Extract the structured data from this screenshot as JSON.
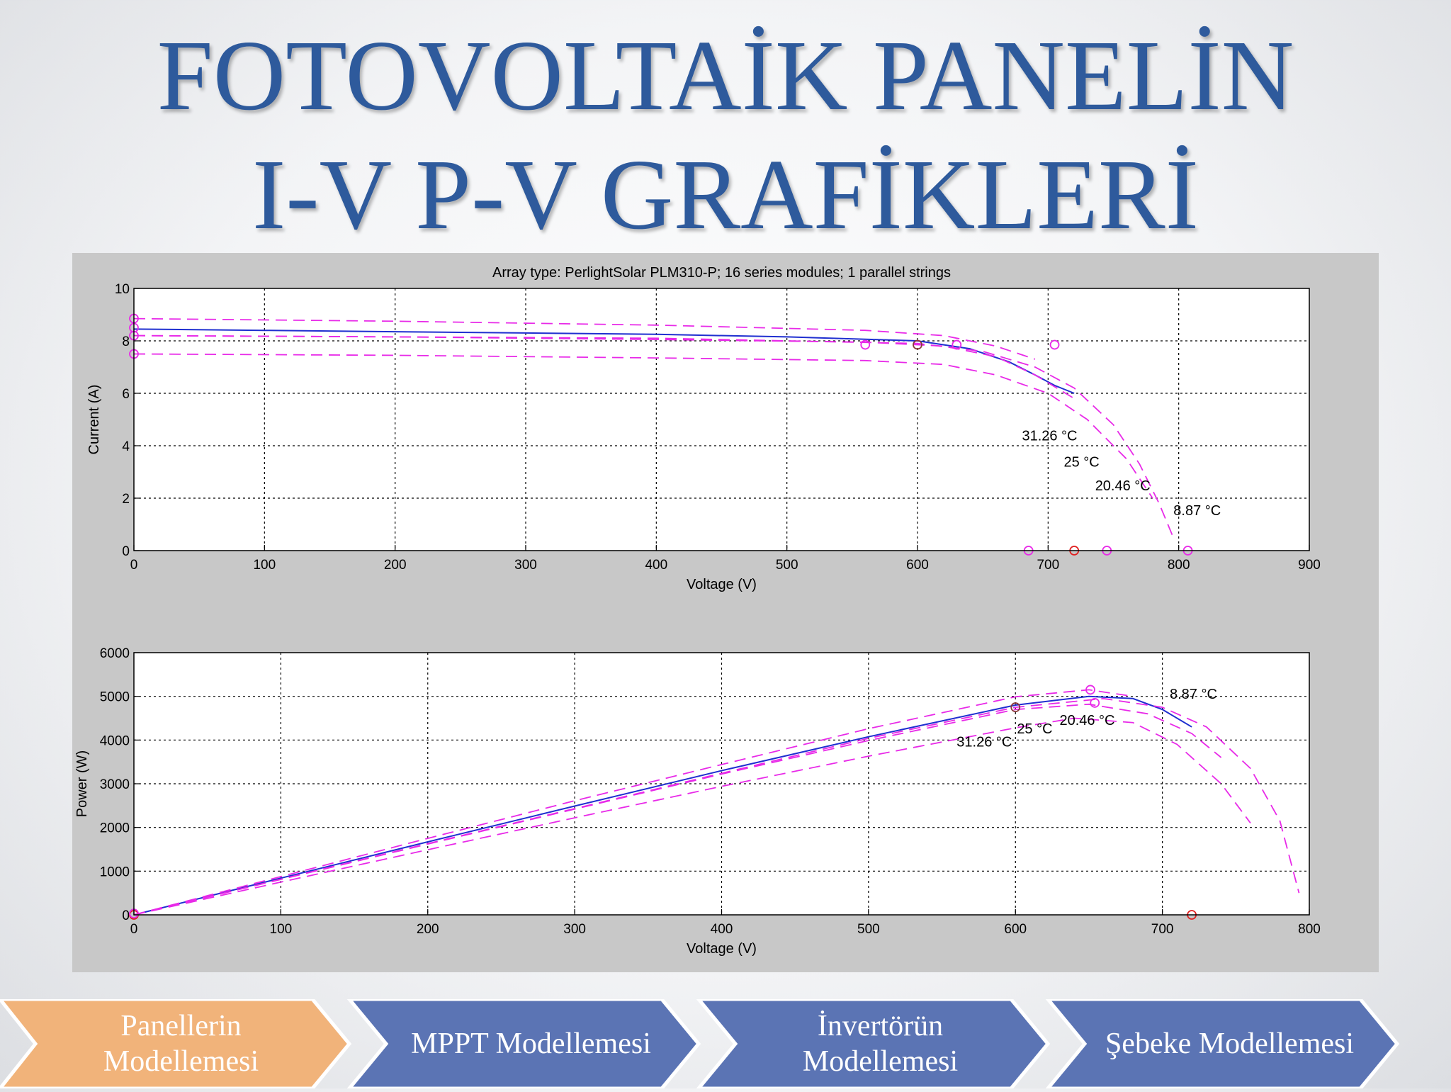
{
  "slide": {
    "title_line1": "FOTOVOLTAİK PANELİN",
    "title_line2": "I-V P-V GRAFİKLERİ"
  },
  "process_steps": [
    {
      "label_line1": "Panellerin",
      "label_line2": "Modellemesi",
      "color": "#f1b37a",
      "active": true
    },
    {
      "label_line1": "MPPT Modellemesi",
      "label_line2": "",
      "color": "#5b74b4",
      "active": false
    },
    {
      "label_line1": "İnvertörün",
      "label_line2": "Modellemesi",
      "color": "#5b74b4",
      "active": false
    },
    {
      "label_line1": "Şebeke Modellemesi",
      "label_line2": "",
      "color": "#5b74b4",
      "active": false
    }
  ],
  "colors": {
    "blue_curve": "#1f2fd0",
    "magenta_curve": "#e82ae8",
    "red_marker": "#e02020",
    "dark_marker": "#8a3a3a"
  },
  "chart_data": [
    {
      "type": "line",
      "title": "Array type: PerlightSolar PLM310-P; 16 series modules; 1 parallel strings",
      "xlabel": "Voltage (V)",
      "ylabel": "Current (A)",
      "xlim": [
        0,
        900
      ],
      "ylim": [
        0,
        10
      ],
      "xticks": [
        0,
        100,
        200,
        300,
        400,
        500,
        600,
        700,
        800,
        900
      ],
      "yticks": [
        0,
        2,
        4,
        6,
        8,
        10
      ],
      "grid": true,
      "series": [
        {
          "style": "solid-blue",
          "x": [
            0,
            100,
            200,
            300,
            400,
            500,
            600,
            640,
            670,
            690,
            705,
            720
          ],
          "y": [
            8.45,
            8.4,
            8.35,
            8.3,
            8.25,
            8.15,
            8.0,
            7.7,
            7.2,
            6.7,
            6.3,
            6.0
          ]
        },
        {
          "style": "dashed-magenta",
          "x": [
            0,
            200,
            400,
            560,
            620,
            660,
            690
          ],
          "y": [
            8.85,
            8.75,
            8.6,
            8.4,
            8.2,
            7.8,
            7.3
          ]
        },
        {
          "style": "dashed-magenta",
          "x": [
            0,
            200,
            400,
            560,
            620,
            660,
            690,
            720
          ],
          "y": [
            8.2,
            8.15,
            8.05,
            7.95,
            7.8,
            7.4,
            6.7,
            5.8
          ]
        },
        {
          "style": "dashed-magenta",
          "x": [
            0,
            200,
            400,
            560,
            620,
            660,
            700,
            730,
            760,
            780
          ],
          "y": [
            7.5,
            7.45,
            7.35,
            7.25,
            7.1,
            6.7,
            6.0,
            5.0,
            3.5,
            2.0
          ]
        },
        {
          "style": "dashed-magenta",
          "x": [
            0,
            200,
            400,
            600,
            650,
            690,
            720,
            750,
            770,
            785,
            795
          ],
          "y": [
            8.2,
            8.15,
            8.1,
            7.9,
            7.6,
            7.0,
            6.2,
            4.8,
            3.3,
            1.8,
            0.6
          ]
        }
      ],
      "markers": [
        {
          "x": 0,
          "y": 8.85,
          "color": "magenta"
        },
        {
          "x": 0,
          "y": 8.5,
          "color": "magenta"
        },
        {
          "x": 0,
          "y": 8.2,
          "color": "magenta"
        },
        {
          "x": 0,
          "y": 7.5,
          "color": "magenta"
        },
        {
          "x": 560,
          "y": 7.85,
          "color": "magenta"
        },
        {
          "x": 600,
          "y": 7.85,
          "color": "dark"
        },
        {
          "x": 630,
          "y": 7.85,
          "color": "magenta"
        },
        {
          "x": 705,
          "y": 7.85,
          "color": "magenta"
        },
        {
          "x": 685,
          "y": 0,
          "color": "magenta"
        },
        {
          "x": 720,
          "y": 0,
          "color": "red"
        },
        {
          "x": 745,
          "y": 0,
          "color": "magenta"
        },
        {
          "x": 807,
          "y": 0,
          "color": "magenta"
        }
      ],
      "annotations": [
        {
          "text": "31.26 °C",
          "x": 680,
          "y": 4.2
        },
        {
          "text": "25 °C",
          "x": 712,
          "y": 3.2
        },
        {
          "text": "20.46 °C",
          "x": 736,
          "y": 2.3
        },
        {
          "text": "8.87 °C",
          "x": 796,
          "y": 1.35
        }
      ]
    },
    {
      "type": "line",
      "title": "",
      "xlabel": "Voltage (V)",
      "ylabel": "Power (W)",
      "xlim": [
        0,
        800
      ],
      "ylim": [
        0,
        6000
      ],
      "xticks": [
        0,
        100,
        200,
        300,
        400,
        500,
        600,
        700,
        800
      ],
      "yticks": [
        0,
        1000,
        2000,
        3000,
        4000,
        5000,
        6000
      ],
      "grid": true,
      "series": [
        {
          "style": "solid-blue",
          "x": [
            0,
            100,
            200,
            300,
            400,
            500,
            600,
            650,
            680,
            700,
            720
          ],
          "y": [
            0,
            840,
            1670,
            2490,
            3300,
            4075,
            4800,
            5000,
            4950,
            4700,
            4300
          ]
        },
        {
          "style": "dashed-magenta",
          "x": [
            0,
            100,
            200,
            300,
            400,
            500,
            600,
            650,
            680
          ],
          "y": [
            0,
            875,
            1750,
            2610,
            3440,
            4260,
            4990,
            5150,
            5000
          ]
        },
        {
          "style": "dashed-magenta",
          "x": [
            0,
            100,
            200,
            300,
            400,
            500,
            600,
            650,
            690,
            720,
            740
          ],
          "y": [
            0,
            810,
            1620,
            2420,
            3220,
            3990,
            4700,
            4820,
            4600,
            4150,
            3600
          ]
        },
        {
          "style": "dashed-magenta",
          "x": [
            0,
            100,
            200,
            300,
            400,
            500,
            600,
            640,
            680,
            710,
            740,
            760
          ],
          "y": [
            0,
            750,
            1490,
            2220,
            2940,
            3630,
            4280,
            4500,
            4400,
            3900,
            3000,
            2100
          ]
        },
        {
          "style": "dashed-magenta",
          "x": [
            0,
            100,
            200,
            300,
            400,
            500,
            600,
            660,
            700,
            730,
            760,
            780,
            793
          ],
          "y": [
            0,
            815,
            1630,
            2430,
            3240,
            4040,
            4750,
            4950,
            4750,
            4300,
            3350,
            2150,
            500
          ]
        }
      ],
      "markers": [
        {
          "x": 0,
          "y": 0,
          "color": "red"
        },
        {
          "x": 0,
          "y": 30,
          "color": "magenta"
        },
        {
          "x": 600,
          "y": 4750,
          "color": "dark"
        },
        {
          "x": 651,
          "y": 5150,
          "color": "magenta"
        },
        {
          "x": 654,
          "y": 4850,
          "color": "magenta"
        },
        {
          "x": 720,
          "y": 0,
          "color": "red"
        }
      ],
      "annotations": [
        {
          "text": "8.87 °C",
          "x": 705,
          "y": 4950
        },
        {
          "text": "20.46 °C",
          "x": 630,
          "y": 4350
        },
        {
          "text": "25 °C",
          "x": 601,
          "y": 4150
        },
        {
          "text": "31.26 °C",
          "x": 560,
          "y": 3850
        }
      ]
    }
  ]
}
